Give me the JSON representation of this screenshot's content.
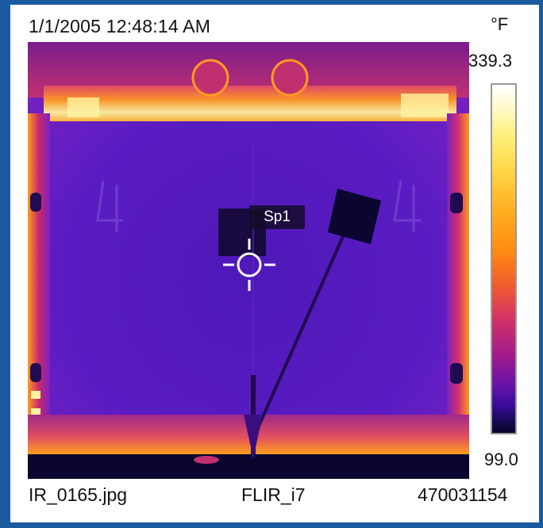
{
  "header": {
    "timestamp": "1/1/2005 12:48:14 AM",
    "unit": "°F"
  },
  "scale": {
    "max": "339.3",
    "min": "99.0",
    "palette": "iron"
  },
  "thermal_image": {
    "spot_label": "Sp1",
    "markings": "4",
    "colors": {
      "hot": "#fff2a0",
      "warm": "#ff9a20",
      "mid": "#c8286e",
      "cool": "#5a1cbe",
      "cold": "#0a0630"
    }
  },
  "footer": {
    "filename": "IR_0165.jpg",
    "camera_model": "FLIR_i7",
    "serial": "470031154"
  }
}
